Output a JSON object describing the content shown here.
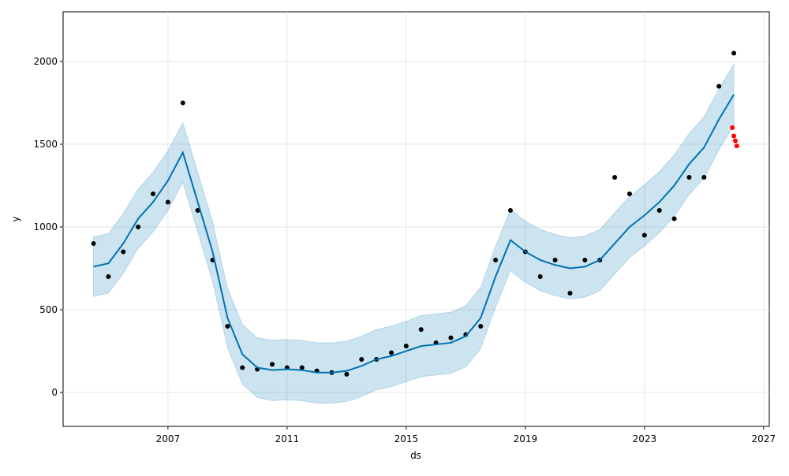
{
  "chart_data": {
    "type": "forecast",
    "xlabel": "ds",
    "ylabel": "y",
    "xlim": [
      2003.48,
      2027.19
    ],
    "ylim": [
      -205,
      2300
    ],
    "xticks": [
      2007,
      2011,
      2015,
      2019,
      2023,
      2027
    ],
    "yticks": [
      0,
      500,
      1000,
      1500,
      2000
    ],
    "grid": true,
    "x": [
      2004.5,
      2005.0,
      2005.5,
      2006.0,
      2006.5,
      2007.0,
      2007.5,
      2008.0,
      2008.5,
      2009.0,
      2009.5,
      2010.0,
      2010.5,
      2011.0,
      2011.5,
      2012.0,
      2012.5,
      2013.0,
      2013.5,
      2014.0,
      2014.5,
      2015.0,
      2015.5,
      2016.0,
      2016.5,
      2017.0,
      2017.5,
      2018.0,
      2018.5,
      2019.0,
      2019.5,
      2020.0,
      2020.5,
      2021.0,
      2021.5,
      2022.0,
      2022.5,
      2023.0,
      2023.5,
      2024.0,
      2024.5,
      2025.0,
      2025.5,
      2026.0
    ],
    "actual": {
      "color": "#000000",
      "values": [
        900,
        700,
        850,
        1000,
        1200,
        1150,
        1750,
        1100,
        800,
        400,
        150,
        140,
        170,
        150,
        150,
        130,
        120,
        110,
        200,
        200,
        240,
        280,
        380,
        300,
        330,
        350,
        400,
        800,
        1100,
        850,
        700,
        800,
        600,
        800,
        800,
        1300,
        1200,
        950,
        1100,
        1050,
        1300,
        1300,
        1850,
        2050
      ]
    },
    "forecast": {
      "color": "#0072b2",
      "values": [
        760,
        780,
        900,
        1050,
        1150,
        1280,
        1450,
        1150,
        850,
        450,
        230,
        150,
        135,
        140,
        135,
        120,
        120,
        130,
        160,
        200,
        220,
        250,
        280,
        290,
        300,
        340,
        450,
        700,
        920,
        850,
        800,
        770,
        750,
        760,
        800,
        900,
        1000,
        1070,
        1150,
        1250,
        1380,
        1480,
        1650,
        1800
      ],
      "lower": [
        580,
        600,
        720,
        870,
        970,
        1100,
        1270,
        970,
        670,
        270,
        50,
        -30,
        -50,
        -45,
        -50,
        -65,
        -65,
        -55,
        -25,
        15,
        35,
        65,
        95,
        105,
        115,
        155,
        265,
        515,
        735,
        665,
        615,
        585,
        565,
        575,
        615,
        715,
        815,
        885,
        965,
        1065,
        1195,
        1295,
        1465,
        1615
      ],
      "upper": [
        940,
        960,
        1080,
        1230,
        1330,
        1460,
        1630,
        1330,
        1030,
        630,
        410,
        330,
        315,
        320,
        315,
        300,
        300,
        310,
        340,
        380,
        400,
        430,
        465,
        475,
        485,
        525,
        635,
        885,
        1105,
        1035,
        985,
        955,
        935,
        945,
        985,
        1085,
        1185,
        1255,
        1335,
        1435,
        1565,
        1665,
        1835,
        1985
      ]
    },
    "test": {
      "color": "#ff0000",
      "x": [
        2025.95,
        2026.0,
        2026.05,
        2026.1
      ],
      "values": [
        1600,
        1550,
        1520,
        1490
      ]
    }
  }
}
